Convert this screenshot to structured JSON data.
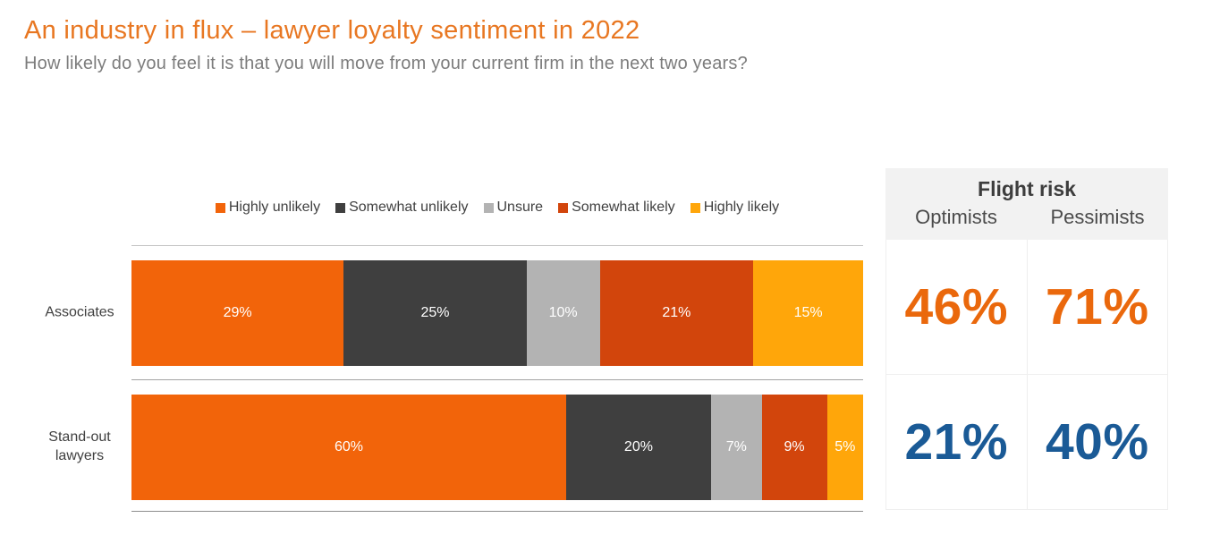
{
  "page": {
    "title": "An industry in flux – lawyer loyalty sentiment in 2022",
    "subtitle": "How likely do you feel it is that you will move from your current firm in the next two years?"
  },
  "colors": {
    "title": "#E87722",
    "flight_row_associates": "#EA680C",
    "flight_row_standout": "#1A5A96"
  },
  "chart_data": {
    "type": "bar",
    "orientation": "horizontal",
    "stacked": true,
    "value_suffix": "%",
    "xlim": [
      0,
      100
    ],
    "grid": false,
    "legend_position": "top-center",
    "title": "An industry in flux – lawyer loyalty sentiment in 2022",
    "subtitle": "How likely do you feel it is that you will move from your current firm in the next two years?",
    "categories": [
      "Associates",
      "Stand-out lawyers"
    ],
    "series": [
      {
        "name": "Highly unlikely",
        "color": "#F2640A",
        "values": [
          29,
          60
        ]
      },
      {
        "name": "Somewhat unlikely",
        "color": "#3F3F3F",
        "values": [
          25,
          20
        ]
      },
      {
        "name": "Unsure",
        "color": "#B3B3B3",
        "values": [
          10,
          7
        ]
      },
      {
        "name": "Somewhat likely",
        "color": "#D2450C",
        "values": [
          21,
          9
        ]
      },
      {
        "name": "Highly likely",
        "color": "#FFA60A",
        "values": [
          15,
          5
        ]
      }
    ]
  },
  "flight_risk": {
    "title": "Flight risk",
    "columns": [
      "Optimists",
      "Pessimists"
    ],
    "rows": [
      {
        "category": "Associates",
        "optimists": "46%",
        "pessimists": "71%"
      },
      {
        "category": "Stand-out lawyers",
        "optimists": "21%",
        "pessimists": "40%"
      }
    ]
  }
}
